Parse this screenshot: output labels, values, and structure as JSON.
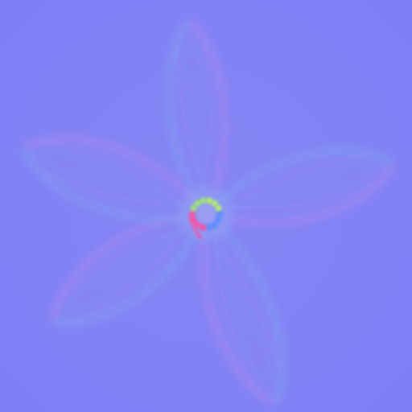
{
  "image": {
    "subject": "flower-normal-map",
    "colors": {
      "base": "#7f80f6",
      "light_edge": "#a39cf3",
      "dark_edge": "#6f8ff4",
      "pink_ridge": "#b58bf0",
      "cyan_ridge": "#7fb2f2",
      "center_hot": "#ff4fa0",
      "center_green": "#9be86a",
      "center_blue": "#5a8cff"
    },
    "petal_count": 5
  }
}
